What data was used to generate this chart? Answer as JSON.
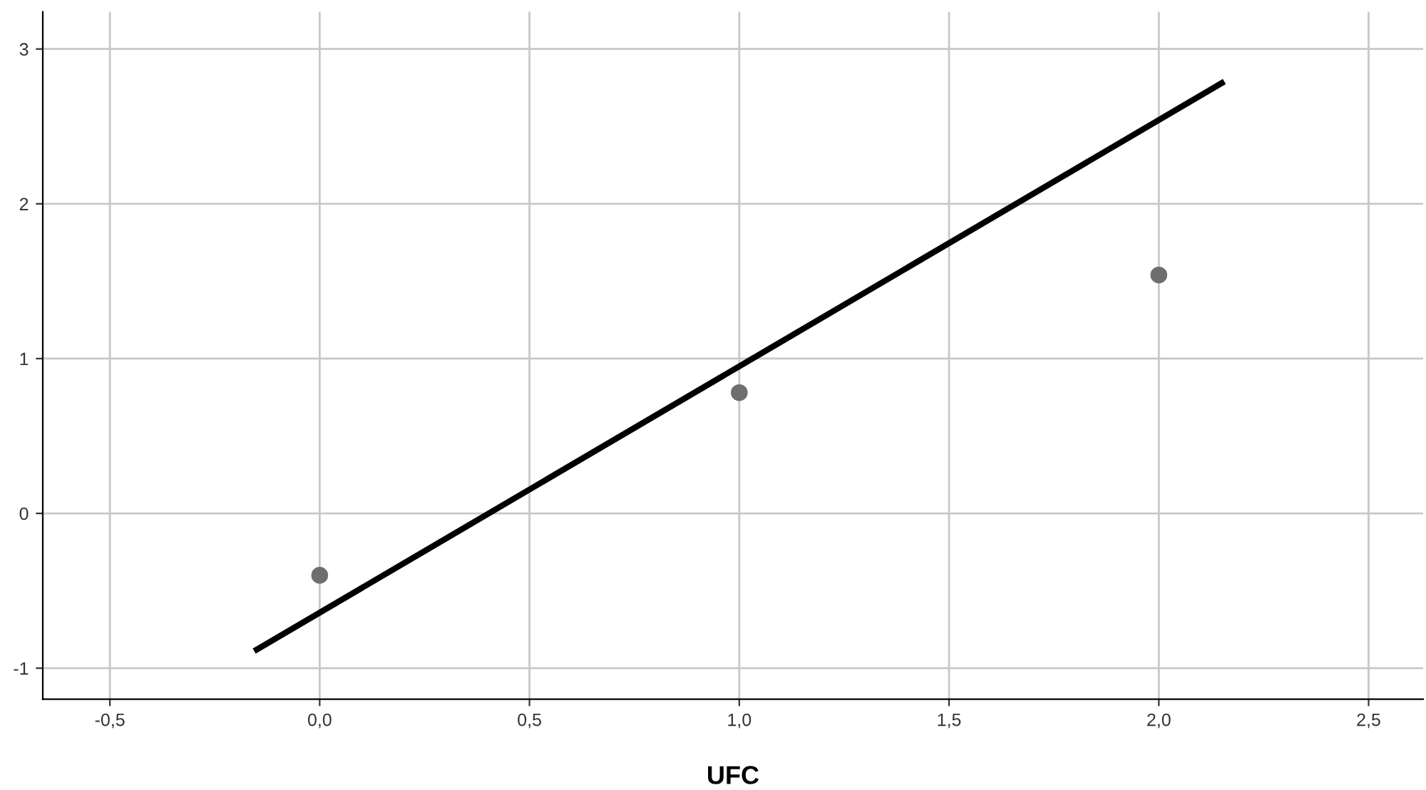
{
  "chart_data": {
    "type": "scatter",
    "xlabel": "UFC",
    "series": [
      {
        "color": "#6e6e6e",
        "marker": "circle",
        "x": [
          0,
          1,
          2
        ],
        "values": [
          -0.4,
          0.78,
          1.54
        ]
      },
      {
        "type": "line",
        "color": "#000000",
        "x": [
          -0.15,
          2.15
        ],
        "values": [
          -0.88,
          2.78
        ]
      }
    ],
    "xlim": [
      -0.66,
      2.63
    ],
    "ylim": [
      -1.2,
      3.24
    ],
    "xticks": [
      {
        "value": -0.5,
        "label": "-0,5"
      },
      {
        "value": 0,
        "label": "0,0"
      },
      {
        "value": 0.5,
        "label": "0,5"
      },
      {
        "value": 1,
        "label": "1,0"
      },
      {
        "value": 1.5,
        "label": "1,5"
      },
      {
        "value": 2,
        "label": "2,0"
      },
      {
        "value": 2.5,
        "label": "2,5"
      }
    ],
    "yticks": [
      -1,
      0,
      1,
      2,
      3
    ],
    "grid": true,
    "line_style": "solid",
    "legend": false
  }
}
